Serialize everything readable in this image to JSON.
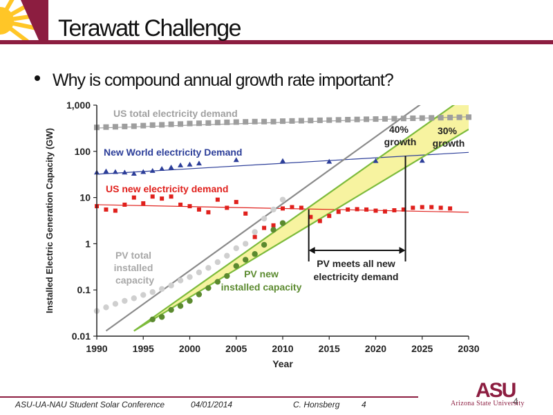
{
  "slide": {
    "title": "Terawatt Challenge",
    "bullet": "Why is compound annual growth rate important?",
    "slide_number": "4"
  },
  "footer": {
    "conference": "ASU-UA-NAU Student Solar Conference",
    "date": "04/01/2014",
    "author": "C. Honsberg",
    "page": "4"
  },
  "logo": {
    "mark": "ASU",
    "name": "Arizona State University"
  },
  "colors": {
    "maroon": "#8c1d40",
    "gold": "#ffc627",
    "us_total": "#9e9e9e",
    "new_world": "#2c3e99",
    "us_new": "#e0201c",
    "pv_total": "#cfcfcf",
    "pv_new": "#5b8a2f",
    "growth_band": "#f7f3a0"
  },
  "chart_data": {
    "type": "scatter",
    "xlabel": "Year",
    "ylabel": "Installed Electric Generation Capacity (GW)",
    "x_ticks": [
      1990,
      1995,
      2000,
      2005,
      2010,
      2015,
      2020,
      2025,
      2030
    ],
    "y_ticks": [
      "0.01",
      "0.1",
      "1",
      "10",
      "100",
      "1,000"
    ],
    "xlim": [
      1990,
      2030
    ],
    "ylim": [
      0.01,
      1000
    ],
    "y_scale": "log",
    "series": [
      {
        "name": "US total electricity demand",
        "marker": "square",
        "color": "#9e9e9e",
        "points": [
          [
            1990,
            330
          ],
          [
            1991,
            335
          ],
          [
            1992,
            340
          ],
          [
            1993,
            345
          ],
          [
            1994,
            350
          ],
          [
            1995,
            360
          ],
          [
            1996,
            370
          ],
          [
            1997,
            375
          ],
          [
            1998,
            385
          ],
          [
            1999,
            390
          ],
          [
            2000,
            400
          ],
          [
            2001,
            405
          ],
          [
            2002,
            410
          ],
          [
            2003,
            420
          ],
          [
            2004,
            425
          ],
          [
            2005,
            430
          ],
          [
            2006,
            435
          ],
          [
            2007,
            440
          ],
          [
            2008,
            440
          ],
          [
            2009,
            440
          ],
          [
            2010,
            450
          ],
          [
            2011,
            455
          ],
          [
            2012,
            460
          ],
          [
            2013,
            465
          ],
          [
            2014,
            470
          ],
          [
            2015,
            475
          ],
          [
            2016,
            480
          ],
          [
            2017,
            485
          ],
          [
            2018,
            490
          ],
          [
            2019,
            495
          ],
          [
            2020,
            500
          ],
          [
            2021,
            505
          ],
          [
            2022,
            510
          ],
          [
            2023,
            515
          ],
          [
            2024,
            520
          ],
          [
            2025,
            525
          ],
          [
            2026,
            530
          ],
          [
            2027,
            535
          ],
          [
            2028,
            540
          ],
          [
            2029,
            545
          ],
          [
            2030,
            550
          ]
        ]
      },
      {
        "name": "New World electricity Demand",
        "marker": "triangle",
        "color": "#2c3e99",
        "points": [
          [
            1990,
            35
          ],
          [
            1991,
            37
          ],
          [
            1992,
            36
          ],
          [
            1993,
            35
          ],
          [
            1994,
            33
          ],
          [
            1995,
            36
          ],
          [
            1996,
            38
          ],
          [
            1997,
            42
          ],
          [
            1998,
            45
          ],
          [
            1999,
            50
          ],
          [
            2000,
            52
          ],
          [
            2001,
            55
          ],
          [
            2005,
            65
          ],
          [
            2010,
            62
          ],
          [
            2015,
            60
          ],
          [
            2020,
            62
          ],
          [
            2025,
            63
          ]
        ]
      },
      {
        "name": "US new electricity demand",
        "marker": "square",
        "color": "#e0201c",
        "points": [
          [
            1990,
            6.5
          ],
          [
            1991,
            5.5
          ],
          [
            1992,
            5.2
          ],
          [
            1993,
            7
          ],
          [
            1994,
            10
          ],
          [
            1995,
            7.5
          ],
          [
            1996,
            10.5
          ],
          [
            1997,
            9.5
          ],
          [
            1998,
            10.5
          ],
          [
            1999,
            7
          ],
          [
            2000,
            6.5
          ],
          [
            2001,
            5.5
          ],
          [
            2002,
            4.8
          ],
          [
            2003,
            9
          ],
          [
            2004,
            6
          ],
          [
            2005,
            8
          ],
          [
            2006,
            4.5
          ],
          [
            2007,
            1.4
          ],
          [
            2008,
            2.2
          ],
          [
            2009,
            2.5
          ],
          [
            2010,
            5.8
          ],
          [
            2011,
            6.2
          ],
          [
            2012,
            6
          ],
          [
            2013,
            3.8
          ],
          [
            2014,
            3.1
          ],
          [
            2015,
            4
          ],
          [
            2016,
            4.9
          ],
          [
            2017,
            5.5
          ],
          [
            2018,
            5.6
          ],
          [
            2019,
            5.5
          ],
          [
            2020,
            5.2
          ],
          [
            2021,
            5
          ],
          [
            2022,
            5.3
          ],
          [
            2023,
            5.5
          ],
          [
            2024,
            6
          ],
          [
            2025,
            6.2
          ],
          [
            2026,
            6.2
          ],
          [
            2027,
            6
          ],
          [
            2028,
            5.8
          ]
        ]
      },
      {
        "name": "PV total installed capacity",
        "marker": "circle",
        "color": "#cfcfcf",
        "points": [
          [
            1990,
            0.035
          ],
          [
            1991,
            0.042
          ],
          [
            1992,
            0.05
          ],
          [
            1993,
            0.058
          ],
          [
            1994,
            0.066
          ],
          [
            1995,
            0.078
          ],
          [
            1996,
            0.09
          ],
          [
            1997,
            0.105
          ],
          [
            1998,
            0.125
          ],
          [
            1999,
            0.16
          ],
          [
            2000,
            0.19
          ],
          [
            2001,
            0.24
          ],
          [
            2002,
            0.3
          ],
          [
            2003,
            0.4
          ],
          [
            2004,
            0.55
          ],
          [
            2005,
            0.8
          ],
          [
            2006,
            1
          ],
          [
            2007,
            1.8
          ],
          [
            2008,
            3.5
          ],
          [
            2009,
            5.5
          ],
          [
            2010,
            9
          ]
        ]
      },
      {
        "name": "PV new installed capacity",
        "marker": "circle",
        "color": "#5b8a2f",
        "points": [
          [
            1996,
            0.023
          ],
          [
            1997,
            0.026
          ],
          [
            1998,
            0.037
          ],
          [
            1999,
            0.045
          ],
          [
            2000,
            0.058
          ],
          [
            2001,
            0.08
          ],
          [
            2002,
            0.11
          ],
          [
            2003,
            0.15
          ],
          [
            2004,
            0.2
          ],
          [
            2005,
            0.33
          ],
          [
            2006,
            0.45
          ],
          [
            2007,
            0.6
          ],
          [
            2008,
            0.95
          ],
          [
            2009,
            2
          ],
          [
            2010,
            2.8
          ]
        ]
      }
    ],
    "trend_lines": [
      {
        "series": "US total electricity demand",
        "points": [
          [
            1990,
            320
          ],
          [
            2030,
            560
          ]
        ]
      },
      {
        "series": "New World electricity Demand",
        "points": [
          [
            1990,
            32
          ],
          [
            2030,
            95
          ]
        ]
      },
      {
        "series": "US new electricity demand",
        "points": [
          [
            1990,
            7
          ],
          [
            2030,
            4.8
          ]
        ]
      },
      {
        "series": "PV total installed capacity",
        "points": [
          [
            1991,
            0.013
          ],
          [
            2025,
            1100
          ]
        ]
      },
      {
        "series": "PV new 40% growth",
        "points": [
          [
            1994,
            0.013
          ],
          [
            2030,
            1700
          ]
        ]
      },
      {
        "series": "PV new 30% growth",
        "points": [
          [
            1994,
            0.013
          ],
          [
            2030,
            300
          ]
        ]
      }
    ],
    "annotations": {
      "us_total": "US total electricity demand",
      "new_world": "New World electricity Demand",
      "us_new": "US new electricity demand",
      "pv_total_l1": "PV total",
      "pv_total_l2": "installed",
      "pv_total_l3": "capacity",
      "pv_new_l1": "PV new",
      "pv_new_l2": "installed capacity",
      "g40_l1": "40%",
      "g40_l2": "growth",
      "g30_l1": "30%",
      "g30_l2": "growth",
      "meets_l1": "PV meets all new",
      "meets_l2": "electricity demand"
    },
    "meets_range": [
      2012.8,
      2023.2
    ]
  }
}
